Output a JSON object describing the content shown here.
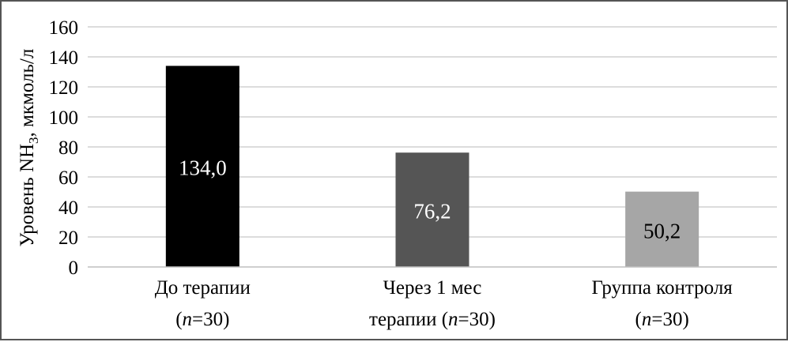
{
  "chart_data": {
    "type": "bar",
    "title": "",
    "xlabel": "",
    "ylabel": {
      "prefix": "Уровень NH",
      "subscript": "3",
      "suffix": ", мкмоль/л"
    },
    "ylim": [
      0,
      160
    ],
    "yticks": [
      "0",
      "20",
      "40",
      "60",
      "80",
      "100",
      "120",
      "140",
      "160"
    ],
    "grid": true,
    "legend": "none",
    "categories": [
      {
        "line1": "До терапии",
        "line2": {
          "open": "(",
          "n": "n",
          "eq": "=30)"
        }
      },
      {
        "line1": "Через 1 мес",
        "line2": {
          "open": "терапии (",
          "n": "n",
          "eq": "=30)"
        }
      },
      {
        "line1": "Группа контроля",
        "line2": {
          "open": "(",
          "n": "n",
          "eq": "=30)"
        }
      }
    ],
    "values": [
      134.0,
      76.2,
      50.2
    ],
    "data_labels": [
      "134,0",
      "76,2",
      "50,2"
    ],
    "colors": [
      "#000000",
      "#555555",
      "#a6a6a6"
    ],
    "label_colors": [
      "#ffffff",
      "#ffffff",
      "#000000"
    ],
    "grid_color": "#c8c8c8"
  }
}
